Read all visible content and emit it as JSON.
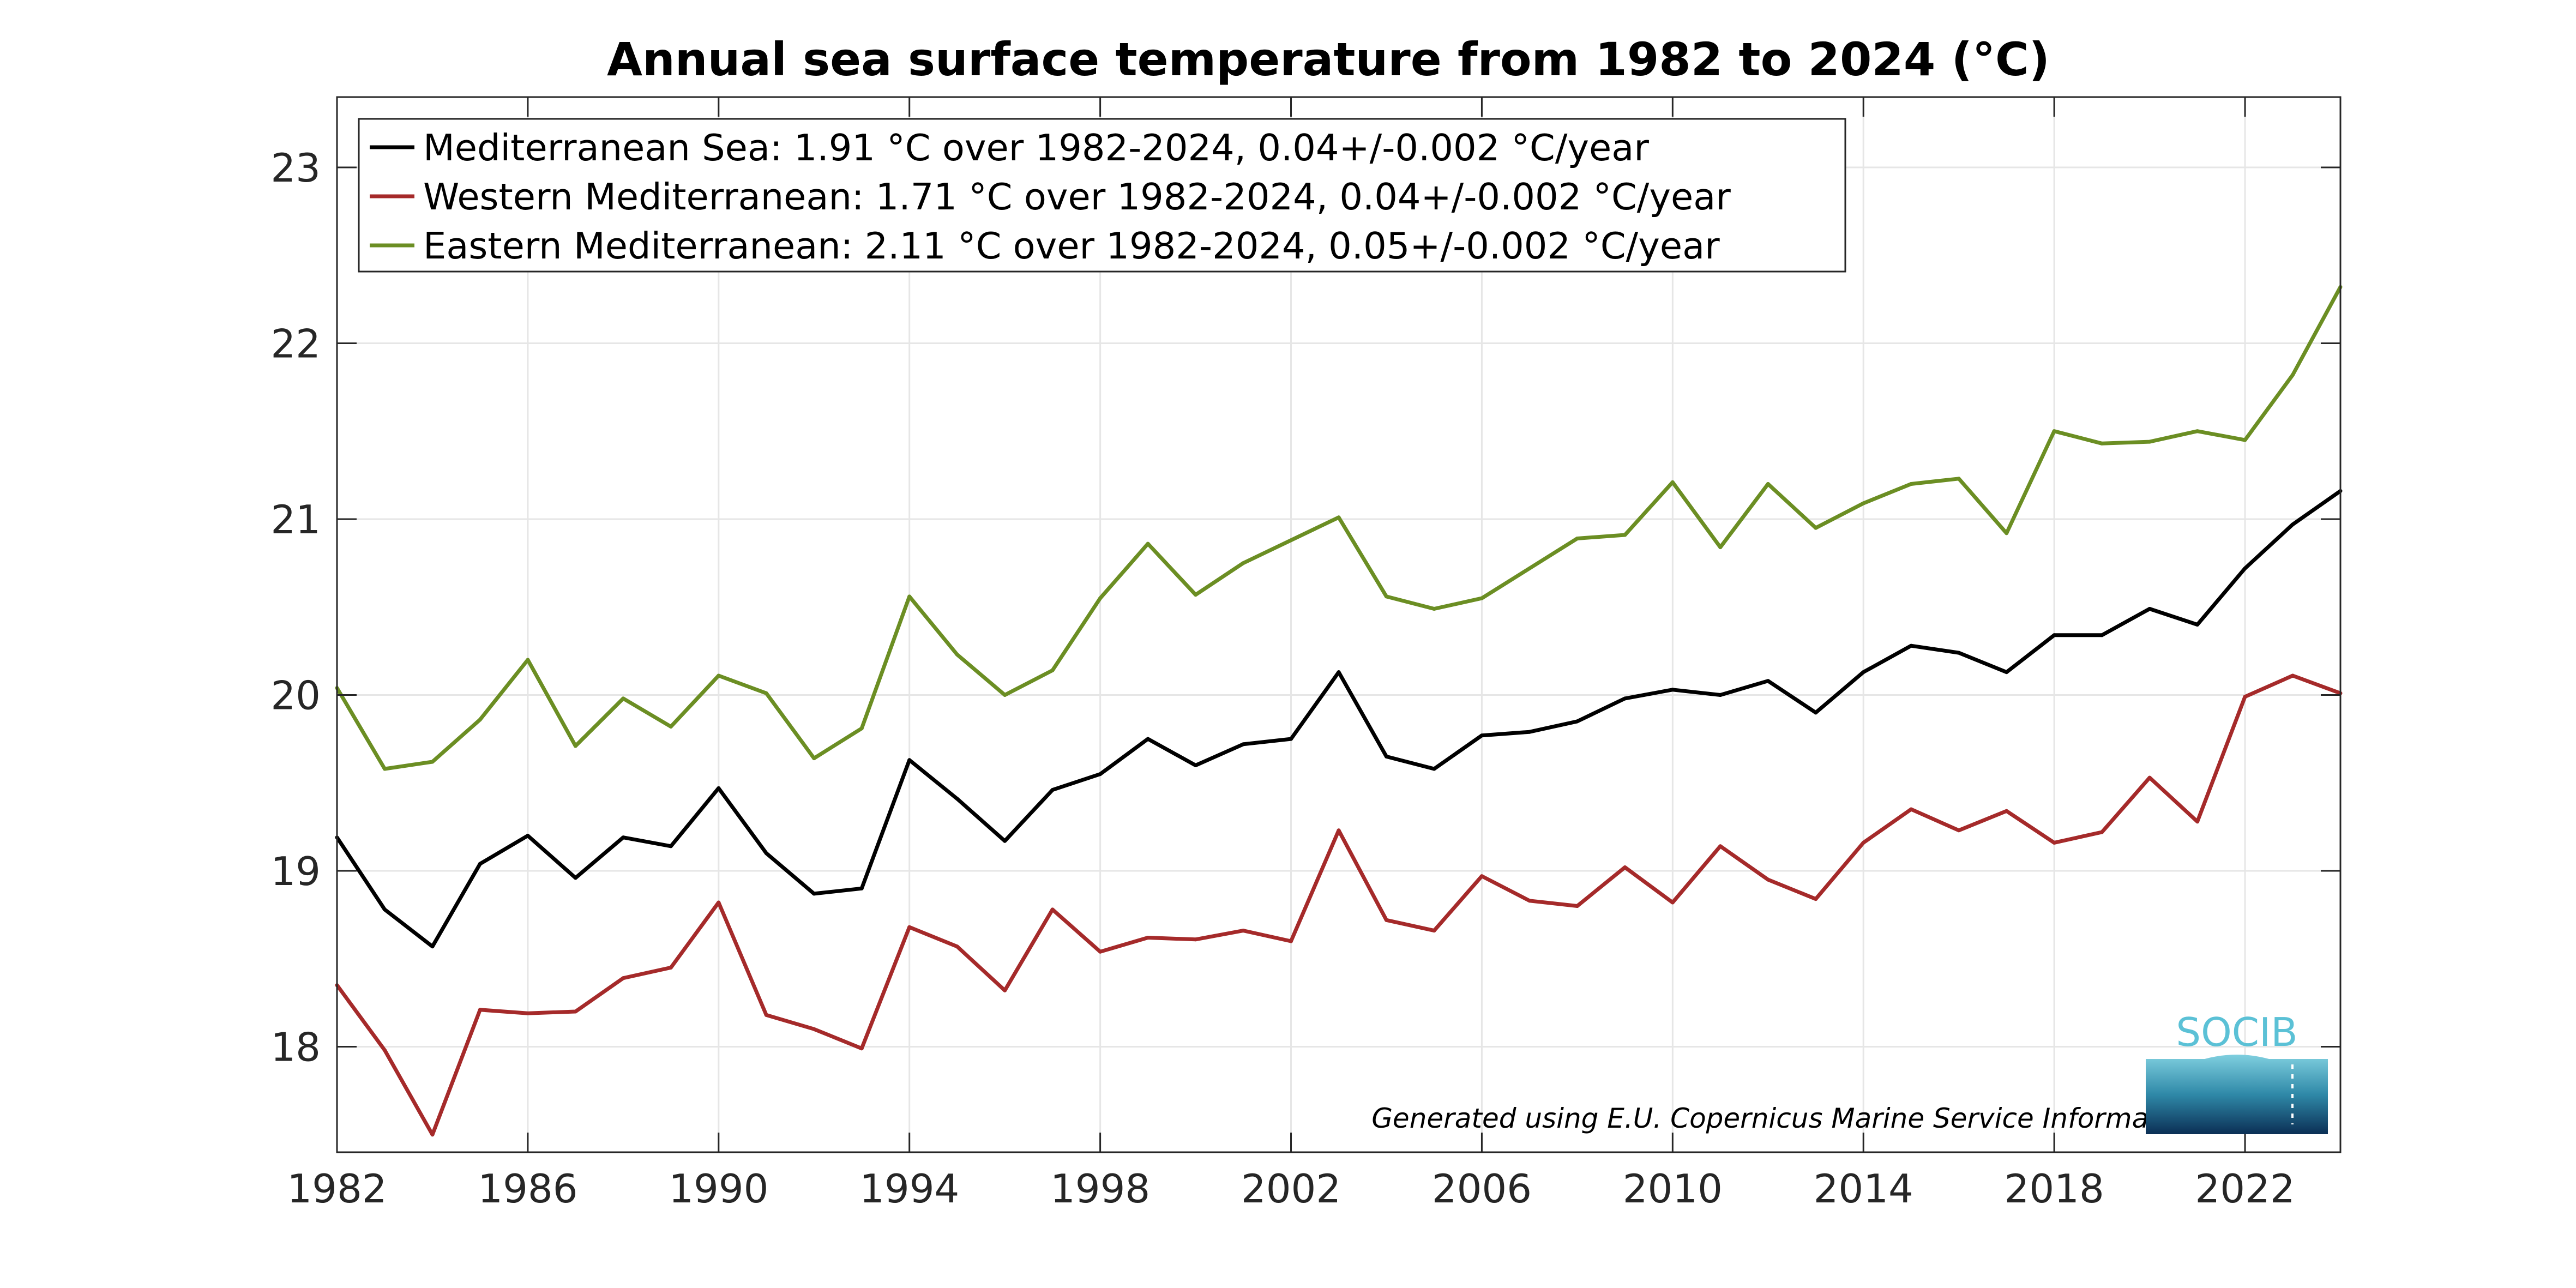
{
  "chart_data": {
    "type": "line",
    "title": "Annual sea surface temperature from 1982 to 2024 (°C)",
    "xlabel": "",
    "ylabel": "",
    "xlim": [
      1982,
      2024
    ],
    "ylim": [
      17.4,
      23.4
    ],
    "xticks": [
      "1982",
      "1986",
      "1990",
      "1994",
      "1998",
      "2002",
      "2006",
      "2010",
      "2014",
      "2018",
      "2022"
    ],
    "yticks": [
      "18",
      "19",
      "20",
      "21",
      "22",
      "23"
    ],
    "grid": true,
    "legend_position": "top-left",
    "x": [
      1982,
      1983,
      1984,
      1985,
      1986,
      1987,
      1988,
      1989,
      1990,
      1991,
      1992,
      1993,
      1994,
      1995,
      1996,
      1997,
      1998,
      1999,
      2000,
      2001,
      2002,
      2003,
      2004,
      2005,
      2006,
      2007,
      2008,
      2009,
      2010,
      2011,
      2012,
      2013,
      2014,
      2015,
      2016,
      2017,
      2018,
      2019,
      2020,
      2021,
      2022,
      2023,
      2024
    ],
    "series": [
      {
        "name": "Mediterranean Sea: 1.91 °C over 1982-2024, 0.04+/-0.002 °C/year",
        "color": "#000000",
        "values": [
          19.19,
          18.78,
          18.57,
          19.04,
          19.2,
          18.96,
          19.19,
          19.14,
          19.47,
          19.1,
          18.87,
          18.9,
          19.63,
          19.41,
          19.17,
          19.46,
          19.55,
          19.75,
          19.6,
          19.72,
          19.75,
          20.13,
          19.65,
          19.58,
          19.77,
          19.79,
          19.85,
          19.98,
          20.03,
          20.0,
          20.08,
          19.9,
          20.13,
          20.28,
          20.24,
          20.13,
          20.34,
          20.34,
          20.49,
          20.4,
          20.72,
          20.97,
          21.16
        ]
      },
      {
        "name": "Western Mediterranean: 1.71 °C over 1982-2024, 0.04+/-0.002 °C/year",
        "color": "#a52a2a",
        "values": [
          18.35,
          17.98,
          17.5,
          18.21,
          18.19,
          18.2,
          18.39,
          18.45,
          18.82,
          18.18,
          18.1,
          17.99,
          18.68,
          18.57,
          18.32,
          18.78,
          18.54,
          18.62,
          18.61,
          18.66,
          18.6,
          19.23,
          18.72,
          18.66,
          18.97,
          18.83,
          18.8,
          19.02,
          18.82,
          19.14,
          18.95,
          18.84,
          19.16,
          19.35,
          19.23,
          19.34,
          19.16,
          19.22,
          19.53,
          19.28,
          19.99,
          20.11,
          20.01
        ]
      },
      {
        "name": "Eastern Mediterranean: 2.11 °C over 1982-2024, 0.05+/-0.002 °C/year",
        "color": "#6b8e23",
        "values": [
          20.04,
          19.58,
          19.62,
          19.86,
          20.2,
          19.71,
          19.98,
          19.82,
          20.11,
          20.01,
          19.64,
          19.81,
          20.56,
          20.23,
          20.0,
          20.14,
          20.55,
          20.86,
          20.57,
          20.75,
          20.88,
          21.01,
          20.56,
          20.49,
          20.55,
          20.72,
          20.89,
          20.91,
          21.21,
          20.84,
          21.2,
          20.95,
          21.09,
          21.2,
          21.23,
          20.92,
          21.5,
          21.43,
          21.44,
          21.5,
          21.45,
          21.82,
          22.32
        ]
      }
    ]
  },
  "footer": {
    "credit": "Generated using E.U. Copernicus Marine Service Information"
  },
  "logo": {
    "text": "SOCIB",
    "color": "#5bc1d6"
  }
}
